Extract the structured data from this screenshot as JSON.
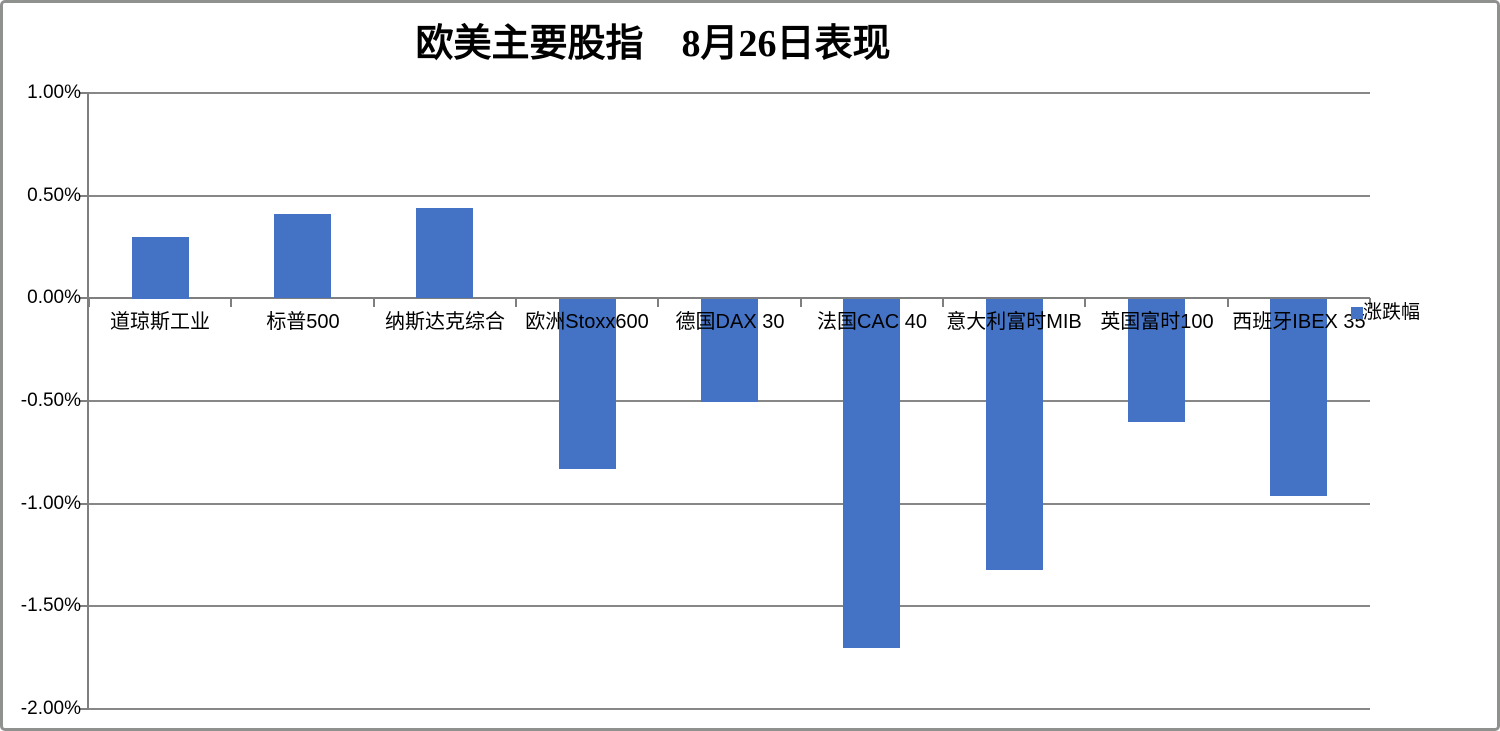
{
  "chart_data": {
    "type": "bar",
    "title": "欧美主要股指　8月26日表现",
    "categories": [
      "道琼斯工业",
      "标普500",
      "纳斯达克综合",
      "欧洲Stoxx600",
      "德国DAX 30",
      "法国CAC 40",
      "意大利富时MIB",
      "英国富时100",
      "西班牙IBEX 35"
    ],
    "values": [
      0.3,
      0.41,
      0.44,
      -0.83,
      -0.5,
      -1.7,
      -1.32,
      -0.6,
      -0.96
    ],
    "series": [
      {
        "name": "涨跌幅",
        "values": [
          0.3,
          0.41,
          0.44,
          -0.83,
          -0.5,
          -1.7,
          -1.32,
          -0.6,
          -0.96
        ]
      }
    ],
    "series_name": "涨跌幅",
    "xlabel": "",
    "ylabel": "",
    "ylim": [
      -2.0,
      1.0
    ],
    "y_tick_step": 0.5,
    "y_tick_labels": [
      "1.00%",
      "0.50%",
      "0.00%",
      "-0.50%",
      "-1.00%",
      "-1.50%",
      "-2.00%"
    ],
    "grid": true,
    "legend_position": "right",
    "value_unit": "percent"
  },
  "colors": {
    "bar": "#4472C4",
    "gridline": "#878787",
    "axis": "#7f7f7f",
    "text": "#000000",
    "frame_border": "#8e918e"
  }
}
